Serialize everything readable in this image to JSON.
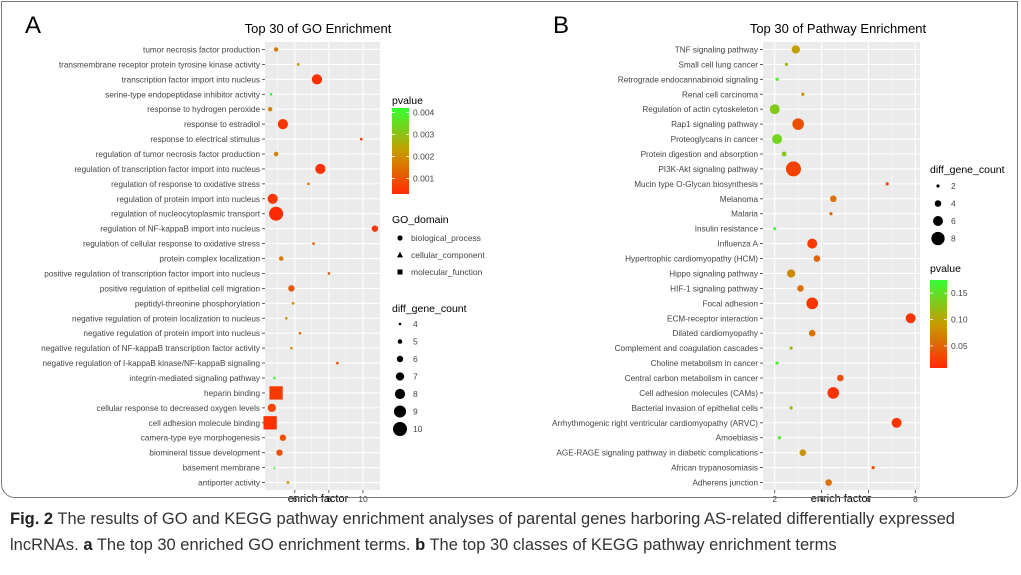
{
  "panel_a": {
    "letter": "A",
    "title": "Top 30 of GO Enrichment",
    "xlabel": "enrich factor",
    "xticks": [
      6,
      8,
      10
    ],
    "xlim": [
      4.25,
      11.0
    ],
    "legend_pvalue": {
      "title": "pvalue",
      "ticks": [
        "0.004",
        "0.003",
        "0.002",
        "0.001"
      ],
      "range": [
        0.0003,
        0.0042
      ],
      "tick_values": [
        0.004,
        0.003,
        0.002,
        0.001
      ]
    },
    "legend_domain": {
      "title": "GO_domain",
      "items": [
        "biological_process",
        "cellular_component",
        "molecular_function"
      ]
    },
    "legend_size": {
      "title": "diff_gene_count",
      "items": [
        4,
        5,
        6,
        7,
        8,
        9,
        10
      ]
    }
  },
  "panel_b": {
    "letter": "B",
    "title": "Top 30 of Pathway Enrichment",
    "xlabel": "enrich factor",
    "xticks": [
      2,
      4,
      6,
      8
    ],
    "xlim": [
      1.5,
      8.2
    ],
    "legend_size": {
      "title": "diff_gene_count",
      "items": [
        2,
        4,
        6,
        8
      ]
    },
    "legend_pvalue": {
      "title": "pvalue",
      "ticks": [
        "0.15",
        "0.10",
        "0.05"
      ],
      "range": [
        0.008,
        0.175
      ],
      "tick_values": [
        0.15,
        0.1,
        0.05
      ]
    }
  },
  "caption": {
    "fig_label": "Fig. 2",
    "text1": " The results of GO and KEGG pathway enrichment analyses of parental genes harboring AS-related differentially expressed lncRNAs. ",
    "a": "a",
    "text2": " The top 30 enriched GO enrichment terms. ",
    "b": "b",
    "text3": " The top 30 classes of KEGG pathway enrichment terms"
  },
  "colors": {
    "low_p": "#ff2200",
    "mid_p": "#cc9900",
    "high_p": "#33ff33",
    "panel_bg": "#ebebeb",
    "grid": "#ffffff"
  },
  "chart_data": [
    {
      "type": "scatter",
      "title": "Top 30 of GO Enrichment",
      "xlabel": "enrich factor",
      "categories": [
        "tumor necrosis factor production",
        "transmembrane receptor protein tyrosine kinase activity",
        "transcription factor import into nucleus",
        "serine-type endopeptidase inhibitor activity",
        "response to hydrogen peroxide",
        "response to estradiol",
        "response to electrical stimulus",
        "regulation of tumor necrosis factor production",
        "regulation of transcription factor import into nucleus",
        "regulation of response to oxidative stress",
        "regulation of protein import into nucleus",
        "regulation of nucleocytoplasmic transport",
        "regulation of NF-kappaB import into nucleus",
        "regulation of cellular response to oxidative stress",
        "protein complex localization",
        "positive regulation of transcription factor import into nucleus",
        "positive regulation of epithelial cell migration",
        "peptidyl-threonine phosphorylation",
        "negative regulation of protein localization to nucleus",
        "negative regulation of protein import into nucleus",
        "negative regulation of NF-kappaB transcription factor activity",
        "negative regulation of I-kappaB kinase/NF-kappaB signaling",
        "integrin-mediated signaling pathway",
        "heparin binding",
        "cellular response to decreased oxygen levels",
        "cell adhesion molecule binding",
        "camera-type eye morphogenesis",
        "biomineral tissue development",
        "basement membrane",
        "antiporter activity"
      ],
      "x": [
        4.9,
        6.2,
        7.3,
        4.6,
        4.55,
        5.3,
        9.9,
        4.9,
        7.5,
        6.8,
        4.7,
        4.9,
        10.7,
        7.1,
        5.2,
        8.0,
        5.8,
        5.9,
        5.5,
        6.3,
        5.8,
        8.5,
        4.8,
        4.9,
        4.65,
        4.55,
        5.3,
        5.1,
        4.8,
        5.6
      ],
      "count": [
        5,
        4,
        8,
        4,
        5,
        8,
        4,
        5,
        8,
        4,
        8,
        10,
        6,
        4,
        5,
        4,
        6,
        4,
        4,
        4,
        4,
        4,
        4,
        10,
        7,
        10,
        6,
        6,
        4,
        4
      ],
      "pvalue": [
        0.0017,
        0.0021,
        0.0004,
        0.0042,
        0.0019,
        0.0005,
        0.0006,
        0.0018,
        0.0004,
        0.0015,
        0.0005,
        0.0003,
        0.0005,
        0.0012,
        0.0016,
        0.0011,
        0.0011,
        0.0019,
        0.0021,
        0.0013,
        0.0021,
        0.0009,
        0.0041,
        0.0006,
        0.0008,
        0.0004,
        0.001,
        0.001,
        0.004,
        0.002
      ],
      "domain": [
        "biological_process",
        "molecular_function",
        "biological_process",
        "molecular_function",
        "biological_process",
        "biological_process",
        "biological_process",
        "biological_process",
        "biological_process",
        "biological_process",
        "biological_process",
        "biological_process",
        "biological_process",
        "biological_process",
        "biological_process",
        "biological_process",
        "biological_process",
        "biological_process",
        "biological_process",
        "biological_process",
        "biological_process",
        "biological_process",
        "biological_process",
        "molecular_function",
        "biological_process",
        "molecular_function",
        "biological_process",
        "biological_process",
        "cellular_component",
        "molecular_function"
      ]
    },
    {
      "type": "scatter",
      "title": "Top 30 of Pathway Enrichment",
      "xlabel": "enrich factor",
      "categories": [
        "TNF signaling pathway",
        "Small cell lung cancer",
        "Retrograde endocannabinoid signaling",
        "Renal cell carcinoma",
        "Regulation of actin cytoskeleton",
        "Rap1 signaling pathway",
        "Proteoglycans in cancer",
        "Protein digestion and absorption",
        "PI3K-Akt signaling pathway",
        "Mucin type O-Glycan biosynthesis",
        "Melanoma",
        "Malaria",
        "Insulin resistance",
        "Influenza A",
        "Hypertrophic cardiomyopathy (HCM)",
        "Hippo signaling pathway",
        "HIF-1 signaling pathway",
        "Focal adhesion",
        "ECM-receptor interaction",
        "Dilated cardiomyopathy",
        "Complement and coagulation cascades",
        "Choline metabolism in cancer",
        "Central carbon metabolism in cancer",
        "Cell adhesion molecules (CAMs)",
        "Bacterial invasion of epithelial cells",
        "Arrhythmogenic right ventricular cardiomyopathy (ARVC)",
        "Amoebiasis",
        "AGE-RAGE signaling pathway in diabetic complications",
        "African trypanosomiasis",
        "Adherens junction"
      ],
      "x": [
        2.9,
        2.5,
        2.1,
        3.2,
        2.0,
        3.0,
        2.1,
        2.4,
        2.8,
        6.8,
        4.5,
        4.4,
        2.0,
        3.6,
        3.8,
        2.7,
        3.1,
        3.6,
        7.8,
        3.6,
        2.7,
        2.1,
        4.8,
        4.5,
        2.7,
        7.2,
        2.2,
        3.2,
        6.2,
        4.3
      ],
      "count": [
        5,
        2,
        2,
        2,
        6,
        7,
        6,
        3,
        9,
        2,
        4,
        2,
        2,
        6,
        4,
        5,
        4,
        7,
        6,
        4,
        2,
        2,
        4,
        7,
        2,
        6,
        2,
        4,
        2,
        4
      ],
      "pvalue": [
        0.095,
        0.115,
        0.16,
        0.085,
        0.13,
        0.035,
        0.14,
        0.13,
        0.025,
        0.02,
        0.06,
        0.05,
        0.17,
        0.02,
        0.05,
        0.08,
        0.06,
        0.015,
        0.015,
        0.06,
        0.11,
        0.16,
        0.035,
        0.015,
        0.11,
        0.015,
        0.16,
        0.085,
        0.035,
        0.06
      ]
    }
  ]
}
